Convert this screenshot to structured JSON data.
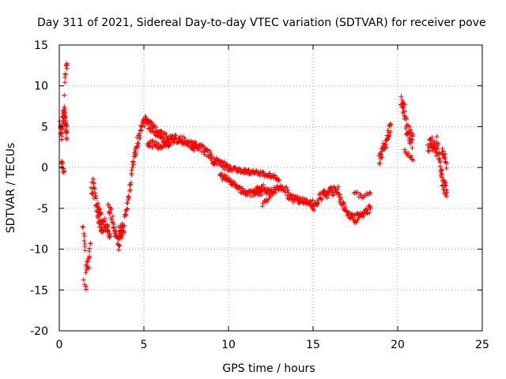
{
  "chart_data": {
    "type": "scatter",
    "title": "Day 311 of 2021, Sidereal Day-to-day VTEC variation (SDTVAR) for receiver pove",
    "xlabel": "GPS time / hours",
    "ylabel": "SDTVAR / TECUs",
    "xlim": [
      0,
      25
    ],
    "ylim": [
      -20,
      15
    ],
    "xticks": [
      0,
      5,
      10,
      15,
      20,
      25
    ],
    "yticks": [
      -20,
      -15,
      -10,
      -5,
      0,
      5,
      10,
      15
    ],
    "xtick_labels": [
      "0",
      "5",
      "10",
      "15",
      "20",
      "25"
    ],
    "ytick_labels": [
      "-20",
      "-15",
      "-10",
      "-5",
      "0",
      "5",
      "10",
      "15"
    ],
    "grid": true,
    "marker": "+",
    "series": [
      {
        "name": "SDTVAR",
        "color": "#ff0000",
        "bands": [
          {
            "x": [
              0.05,
              0.45
            ],
            "y": [
              [
                0.05,
                5
              ],
              [
                0.15,
                4
              ],
              [
                0.2,
                6
              ],
              [
                0.3,
                6.8
              ],
              [
                0.4,
                5
              ],
              [
                0.45,
                4
              ]
            ],
            "spread": 1.6,
            "count": 60
          },
          {
            "x": [
              0.3,
              0.45
            ],
            "y": [
              [
                0.3,
                9
              ],
              [
                0.35,
                11
              ],
              [
                0.4,
                12
              ]
            ],
            "spread": 1.5,
            "count": 10
          },
          {
            "x": [
              0.1,
              0.3
            ],
            "y": [
              [
                0.1,
                1
              ],
              [
                0.2,
                0
              ],
              [
                0.3,
                -0.8
              ]
            ],
            "spread": 1.2,
            "count": 10
          },
          {
            "x": [
              1.4,
              1.85
            ],
            "y": [
              [
                1.4,
                -6.5
              ],
              [
                1.5,
                -9
              ],
              [
                1.6,
                -13
              ],
              [
                1.7,
                -12
              ],
              [
                1.8,
                -10.5
              ]
            ],
            "spread": 2.5,
            "count": 24
          },
          {
            "x": [
              1.45,
              1.6
            ],
            "y": [
              [
                1.45,
                -14
              ],
              [
                1.55,
                -15
              ]
            ],
            "spread": 1.0,
            "count": 4
          },
          {
            "x": [
              1.9,
              2.5
            ],
            "y": [
              [
                1.9,
                -3
              ],
              [
                2.0,
                -2
              ],
              [
                2.2,
                -5
              ],
              [
                2.35,
                -5.5
              ],
              [
                2.5,
                -7
              ]
            ],
            "spread": 2.2,
            "count": 40
          },
          {
            "x": [
              2.3,
              3.0
            ],
            "y": [
              [
                2.3,
                -6
              ],
              [
                2.5,
                -7.5
              ],
              [
                2.7,
                -7
              ],
              [
                2.9,
                -8
              ],
              [
                3.0,
                -9
              ]
            ],
            "spread": 1.6,
            "count": 40
          },
          {
            "x": [
              2.9,
              3.7
            ],
            "y": [
              [
                2.9,
                -5
              ],
              [
                3.1,
                -6
              ],
              [
                3.3,
                -8
              ],
              [
                3.5,
                -9.5
              ],
              [
                3.7,
                -8
              ]
            ],
            "spread": 1.6,
            "count": 40
          },
          {
            "x": [
              3.5,
              4.8
            ],
            "y": [
              [
                3.5,
                -8
              ],
              [
                3.8,
                -7.5
              ],
              [
                4.0,
                -5
              ],
              [
                4.2,
                -2
              ],
              [
                4.4,
                1
              ],
              [
                4.6,
                3
              ],
              [
                4.8,
                4.5
              ]
            ],
            "spread": 1.5,
            "count": 70
          },
          {
            "x": [
              4.8,
              6.5
            ],
            "y": [
              [
                4.8,
                4.5
              ],
              [
                5.0,
                5.8
              ],
              [
                5.3,
                5.2
              ],
              [
                5.7,
                4.5
              ],
              [
                6.0,
                4
              ],
              [
                6.5,
                3.2
              ]
            ],
            "spread": 1.3,
            "count": 80
          },
          {
            "x": [
              5.2,
              6.5
            ],
            "y": [
              [
                5.2,
                3
              ],
              [
                5.6,
                2.8
              ],
              [
                6.0,
                2.6
              ],
              [
                6.5,
                2.8
              ]
            ],
            "spread": 0.9,
            "count": 40
          },
          {
            "x": [
              6.5,
              8.0
            ],
            "y": [
              [
                6.5,
                3.5
              ],
              [
                7.0,
                3.5
              ],
              [
                7.5,
                3.2
              ],
              [
                8.0,
                2.5
              ]
            ],
            "spread": 1.0,
            "count": 60
          },
          {
            "x": [
              7.8,
              9.0
            ],
            "y": [
              [
                7.8,
                2.8
              ],
              [
                8.3,
                2.6
              ],
              [
                8.6,
                2
              ],
              [
                9.0,
                1.5
              ]
            ],
            "spread": 0.9,
            "count": 50
          },
          {
            "x": [
              9.0,
              10.0
            ],
            "y": [
              [
                9.0,
                1
              ],
              [
                9.5,
                0.5
              ],
              [
                10.0,
                0
              ]
            ],
            "spread": 1.0,
            "count": 40
          },
          {
            "x": [
              9.5,
              12.0
            ],
            "y": [
              [
                9.5,
                -1
              ],
              [
                10.0,
                -1.5
              ],
              [
                10.5,
                -2.5
              ],
              [
                11.0,
                -3.0
              ],
              [
                11.5,
                -3.2
              ],
              [
                12.0,
                -3.0
              ]
            ],
            "spread": 0.8,
            "count": 80
          },
          {
            "x": [
              10.0,
              13.0
            ],
            "y": [
              [
                10.0,
                0
              ],
              [
                10.5,
                -0.3
              ],
              [
                11.0,
                -0.5
              ],
              [
                11.5,
                -0.6
              ],
              [
                12.0,
                -0.8
              ],
              [
                12.5,
                -1.0
              ],
              [
                13.0,
                -1.5
              ]
            ],
            "spread": 0.6,
            "count": 80
          },
          {
            "x": [
              11.5,
              13.5
            ],
            "y": [
              [
                11.5,
                -3
              ],
              [
                12.0,
                -2.5
              ],
              [
                12.5,
                -3.0
              ],
              [
                13.0,
                -2.5
              ],
              [
                13.5,
                -3.0
              ]
            ],
            "spread": 1.0,
            "count": 60
          },
          {
            "x": [
              12.0,
              12.5
            ],
            "y": [
              [
                12.0,
                -4.5
              ],
              [
                12.3,
                -4.0
              ],
              [
                12.5,
                -3.5
              ]
            ],
            "spread": 0.6,
            "count": 10
          },
          {
            "x": [
              13.5,
              15.0
            ],
            "y": [
              [
                13.5,
                -3.5
              ],
              [
                14.0,
                -4.0
              ],
              [
                14.5,
                -4.2
              ],
              [
                15.0,
                -4.5
              ]
            ],
            "spread": 1.0,
            "count": 60
          },
          {
            "x": [
              15.0,
              16.5
            ],
            "y": [
              [
                15.0,
                -5.0
              ],
              [
                15.5,
                -3.5
              ],
              [
                16.0,
                -3.0
              ],
              [
                16.5,
                -2.8
              ]
            ],
            "spread": 1.2,
            "count": 60
          },
          {
            "x": [
              16.5,
              18.4
            ],
            "y": [
              [
                16.5,
                -3.5
              ],
              [
                17.0,
                -5.5
              ],
              [
                17.5,
                -6.3
              ],
              [
                18.0,
                -5.5
              ],
              [
                18.4,
                -5.0
              ]
            ],
            "spread": 1.0,
            "count": 70
          },
          {
            "x": [
              17.4,
              18.4
            ],
            "y": [
              [
                17.4,
                -3
              ],
              [
                17.8,
                -3.5
              ],
              [
                18.1,
                -3.5
              ],
              [
                18.4,
                -3.0
              ]
            ],
            "spread": 0.5,
            "count": 15
          },
          {
            "x": [
              18.9,
              19.6
            ],
            "y": [
              [
                18.9,
                1
              ],
              [
                19.1,
                2
              ],
              [
                19.3,
                3
              ],
              [
                19.5,
                4.5
              ],
              [
                19.6,
                4.8
              ]
            ],
            "spread": 1.4,
            "count": 40
          },
          {
            "x": [
              20.2,
              20.9
            ],
            "y": [
              [
                20.2,
                8
              ],
              [
                20.4,
                7
              ],
              [
                20.5,
                5
              ],
              [
                20.7,
                4
              ],
              [
                20.9,
                3
              ]
            ],
            "spread": 2.0,
            "count": 50
          },
          {
            "x": [
              20.4,
              20.9
            ],
            "y": [
              [
                20.4,
                2
              ],
              [
                20.6,
                1.5
              ],
              [
                20.9,
                1
              ]
            ],
            "spread": 0.6,
            "count": 10
          },
          {
            "x": [
              21.8,
              22.3
            ],
            "y": [
              [
                21.8,
                2.5
              ],
              [
                22.0,
                3
              ],
              [
                22.2,
                2.5
              ],
              [
                22.3,
                2
              ]
            ],
            "spread": 1.6,
            "count": 30
          },
          {
            "x": [
              22.3,
              22.9
            ],
            "y": [
              [
                22.3,
                3
              ],
              [
                22.5,
                1
              ],
              [
                22.6,
                -1
              ],
              [
                22.7,
                -2
              ],
              [
                22.9,
                -3
              ]
            ],
            "spread": 2.0,
            "count": 40
          },
          {
            "x": [
              22.6,
              22.9
            ],
            "y": [
              [
                22.6,
                2
              ],
              [
                22.8,
                1.5
              ],
              [
                22.9,
                0
              ]
            ],
            "spread": 1.2,
            "count": 15
          }
        ]
      }
    ]
  }
}
